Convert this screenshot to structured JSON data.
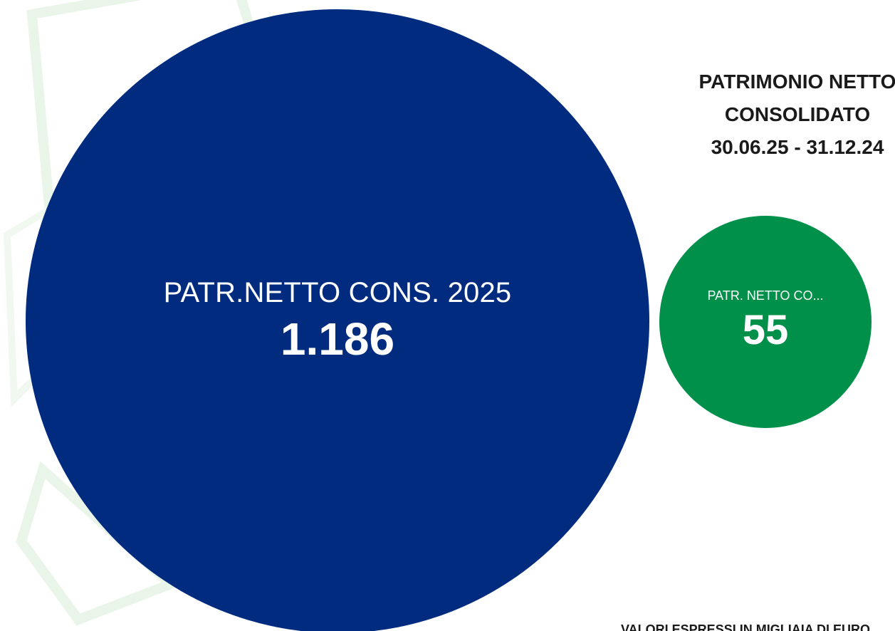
{
  "chart_data": {
    "type": "bubble",
    "title_lines": [
      "PATRIMONIO NETTO",
      "CONSOLIDATO",
      "30.06.25 - 31.12.24"
    ],
    "footnote": "VALORI ESPRESSI IN MIGLIAIA DI EURO",
    "series": [
      {
        "name": "PATR.NETTO CONS. 2025",
        "value": 1186,
        "value_label": "1.186",
        "color": "#002b7f"
      },
      {
        "name": "PATR. NETTO CO...",
        "value": 55,
        "value_label": "55",
        "color": "#00904a"
      }
    ]
  },
  "colors": {
    "background": "#ffffff",
    "text": "#1a1a1a",
    "decoration": "#eaf5ea"
  }
}
